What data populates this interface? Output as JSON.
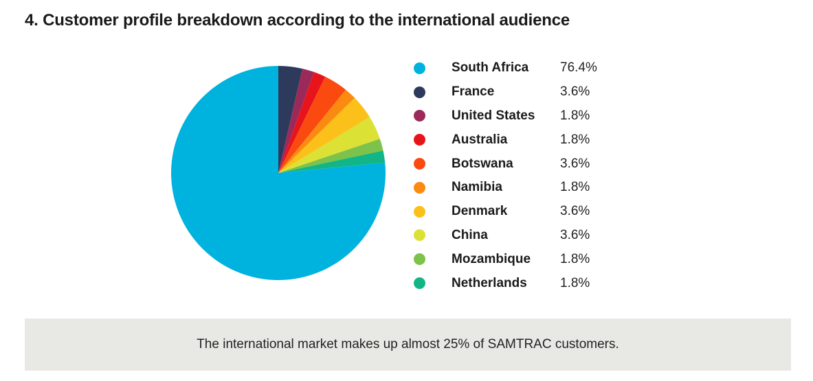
{
  "title": "4. Customer profile breakdown according to the international audience",
  "chart_data": {
    "type": "pie",
    "categories": [
      "South Africa",
      "France",
      "United States",
      "Australia",
      "Botswana",
      "Namibia",
      "Denmark",
      "China",
      "Mozambique",
      "Netherlands"
    ],
    "values": [
      76.4,
      3.6,
      1.8,
      1.8,
      3.6,
      1.8,
      3.6,
      3.6,
      1.8,
      1.8
    ],
    "value_labels": [
      "76.4%",
      "3.6%",
      "1.8%",
      "1.8%",
      "3.6%",
      "1.8%",
      "3.6%",
      "3.6%",
      "1.8%",
      "1.8%"
    ],
    "colors": [
      "#00b2de",
      "#2e3a5c",
      "#9b2a5a",
      "#e8141b",
      "#fb4a10",
      "#fb8a10",
      "#fcc01a",
      "#dce135",
      "#7dc24a",
      "#12b686"
    ],
    "legend_position": "right"
  },
  "footer": {
    "text": "The international market makes up almost 25% of SAMTRAC customers."
  }
}
